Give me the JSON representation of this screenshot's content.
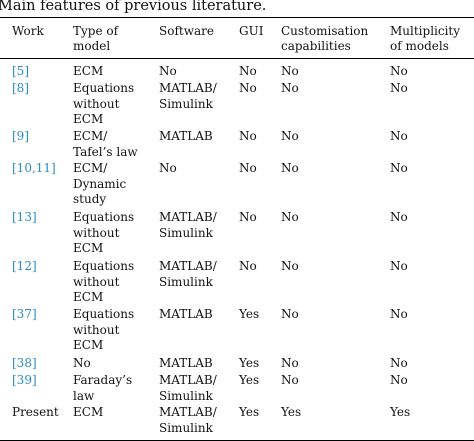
{
  "caption": "Main features of previous literature.",
  "colors": {
    "reference_link": "#2a8dc6",
    "text": "#111111",
    "rule": "#000000"
  },
  "table": {
    "headers": {
      "work": "Work",
      "model": [
        "Type of",
        "model"
      ],
      "software": "Software",
      "gui": "GUI",
      "custom": [
        "Customisation",
        "capabilities"
      ],
      "multi": [
        "Multiplicity",
        "of models"
      ]
    },
    "rows": [
      {
        "work": "[5]",
        "model": [
          "ECM"
        ],
        "software": [
          "No"
        ],
        "gui": "No",
        "custom": "No",
        "multi": "No"
      },
      {
        "work": "[8]",
        "model": [
          "Equations",
          "without",
          "ECM"
        ],
        "software": [
          "MATLAB/",
          "Simulink"
        ],
        "gui": "No",
        "custom": "No",
        "multi": "No"
      },
      {
        "work": "[9]",
        "model": [
          "ECM/",
          "Tafel’s law"
        ],
        "software": [
          "MATLAB"
        ],
        "gui": "No",
        "custom": "No",
        "multi": "No"
      },
      {
        "work": "[10,11]",
        "model": [
          "ECM/",
          "Dynamic",
          "study"
        ],
        "software": [
          "No"
        ],
        "gui": "No",
        "custom": "No",
        "multi": "No"
      },
      {
        "work": "[13]",
        "model": [
          "Equations",
          "without",
          "ECM"
        ],
        "software": [
          "MATLAB/",
          "Simulink"
        ],
        "gui": "No",
        "custom": "No",
        "multi": "No"
      },
      {
        "work": "[12]",
        "model": [
          "Equations",
          "without",
          "ECM"
        ],
        "software": [
          "MATLAB/",
          "Simulink"
        ],
        "gui": "No",
        "custom": "No",
        "multi": "No"
      },
      {
        "work": "[37]",
        "model": [
          "Equations",
          "without",
          "ECM"
        ],
        "software": [
          "MATLAB"
        ],
        "gui": "Yes",
        "custom": "No",
        "multi": "No"
      },
      {
        "work": "[38]",
        "model": [
          "No"
        ],
        "software": [
          "MATLAB"
        ],
        "gui": "Yes",
        "custom": "No",
        "multi": "No"
      },
      {
        "work": "[39]",
        "model": [
          "Faraday’s",
          "law"
        ],
        "software": [
          "MATLAB/",
          "Simulink"
        ],
        "gui": "Yes",
        "custom": "No",
        "multi": "No"
      },
      {
        "work": "Present",
        "model": [
          "ECM"
        ],
        "software": [
          "MATLAB/",
          "Simulink"
        ],
        "gui": "Yes",
        "custom": "Yes",
        "multi": "Yes"
      }
    ]
  }
}
